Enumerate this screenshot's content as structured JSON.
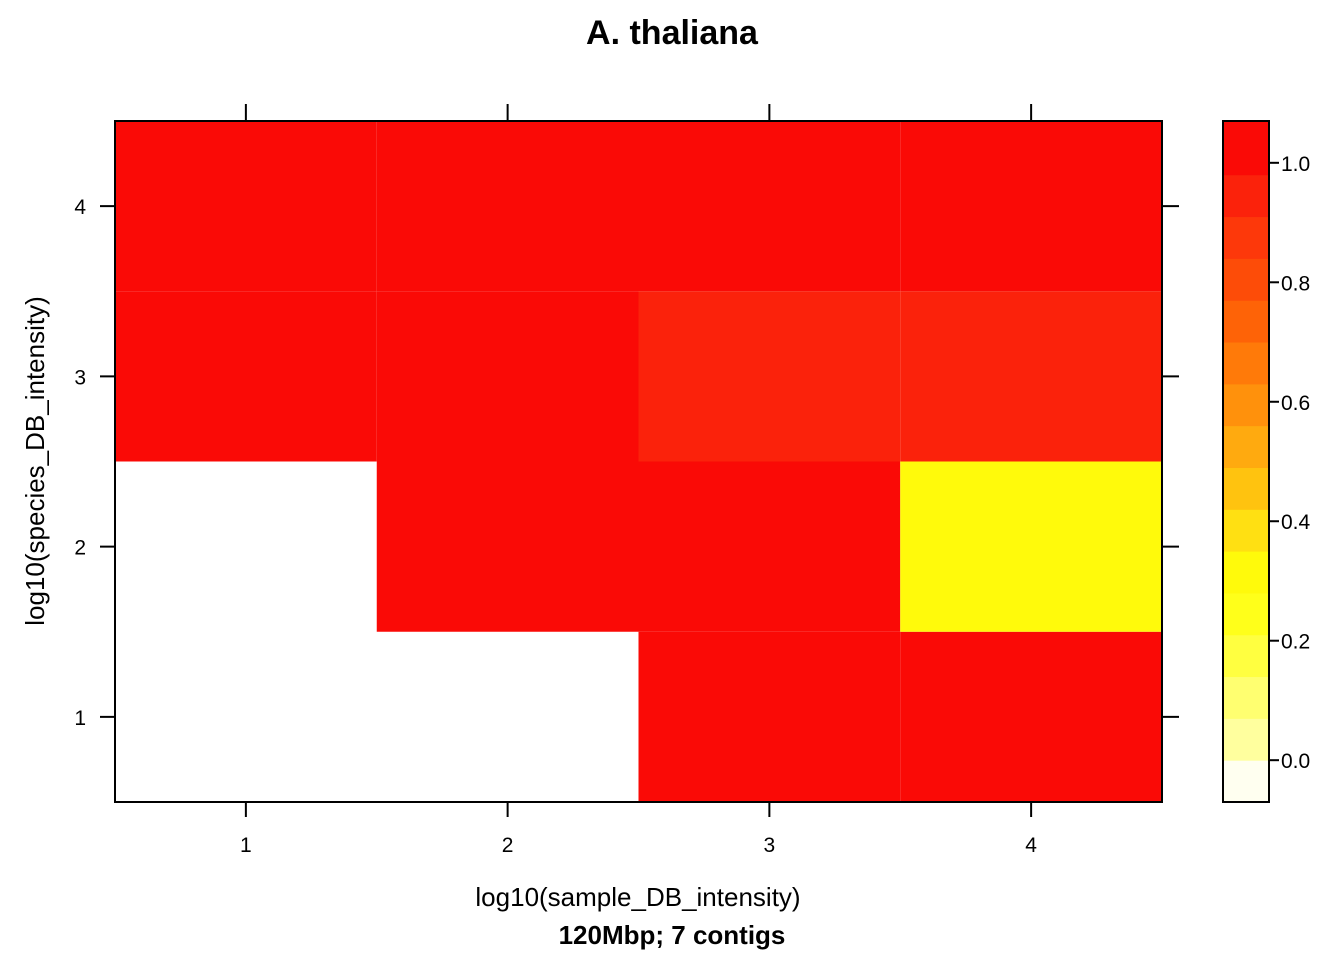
{
  "chart_data": {
    "type": "heatmap",
    "title": "A. thaliana",
    "xlabel": "log10(sample_DB_intensity)",
    "ylabel": "log10(species_DB_intensity)",
    "sublabel": "120Mbp; 7 contigs",
    "x_ticks": [
      "1",
      "2",
      "3",
      "4"
    ],
    "y_ticks": [
      "1",
      "2",
      "3",
      "4"
    ],
    "x_values": [
      1,
      2,
      3,
      4
    ],
    "y_values": [
      1,
      2,
      3,
      4
    ],
    "xlim": [
      0.5,
      4.5
    ],
    "ylim": [
      0.5,
      4.5
    ],
    "cells": [
      {
        "x": 1,
        "y": 1,
        "value": null
      },
      {
        "x": 2,
        "y": 1,
        "value": null
      },
      {
        "x": 3,
        "y": 1,
        "value": 1.0
      },
      {
        "x": 4,
        "y": 1,
        "value": 1.0
      },
      {
        "x": 1,
        "y": 2,
        "value": null
      },
      {
        "x": 2,
        "y": 2,
        "value": 1.0
      },
      {
        "x": 3,
        "y": 2,
        "value": 1.0
      },
      {
        "x": 4,
        "y": 2,
        "value": 0.28
      },
      {
        "x": 1,
        "y": 3,
        "value": 1.0
      },
      {
        "x": 2,
        "y": 3,
        "value": 1.0
      },
      {
        "x": 3,
        "y": 3,
        "value": 0.97
      },
      {
        "x": 4,
        "y": 3,
        "value": 0.97
      },
      {
        "x": 1,
        "y": 4,
        "value": 1.0
      },
      {
        "x": 2,
        "y": 4,
        "value": 1.0
      },
      {
        "x": 3,
        "y": 4,
        "value": 1.0
      },
      {
        "x": 4,
        "y": 4,
        "value": 1.0
      }
    ],
    "colorbar": {
      "range": [
        -0.07,
        1.07
      ],
      "ticks": [
        "0.0",
        "0.2",
        "0.4",
        "0.6",
        "0.8",
        "1.0"
      ],
      "tick_values": [
        0.0,
        0.2,
        0.4,
        0.6,
        0.8,
        1.0
      ],
      "levels": [
        -0.07,
        0.0,
        0.07,
        0.14,
        0.21,
        0.28,
        0.35,
        0.42,
        0.49,
        0.56,
        0.63,
        0.7,
        0.77,
        0.84,
        0.91,
        0.98,
        1.07
      ],
      "colors": [
        "#fffff0",
        "#ffff9e",
        "#ffff70",
        "#ffff40",
        "#ffff1a",
        "#fffa0b",
        "#ffe012",
        "#ffc30f",
        "#ffaa0f",
        "#ff910c",
        "#ff7a09",
        "#fe6307",
        "#fd4c08",
        "#fd380a",
        "#fb220b",
        "#fa0a06"
      ]
    }
  }
}
